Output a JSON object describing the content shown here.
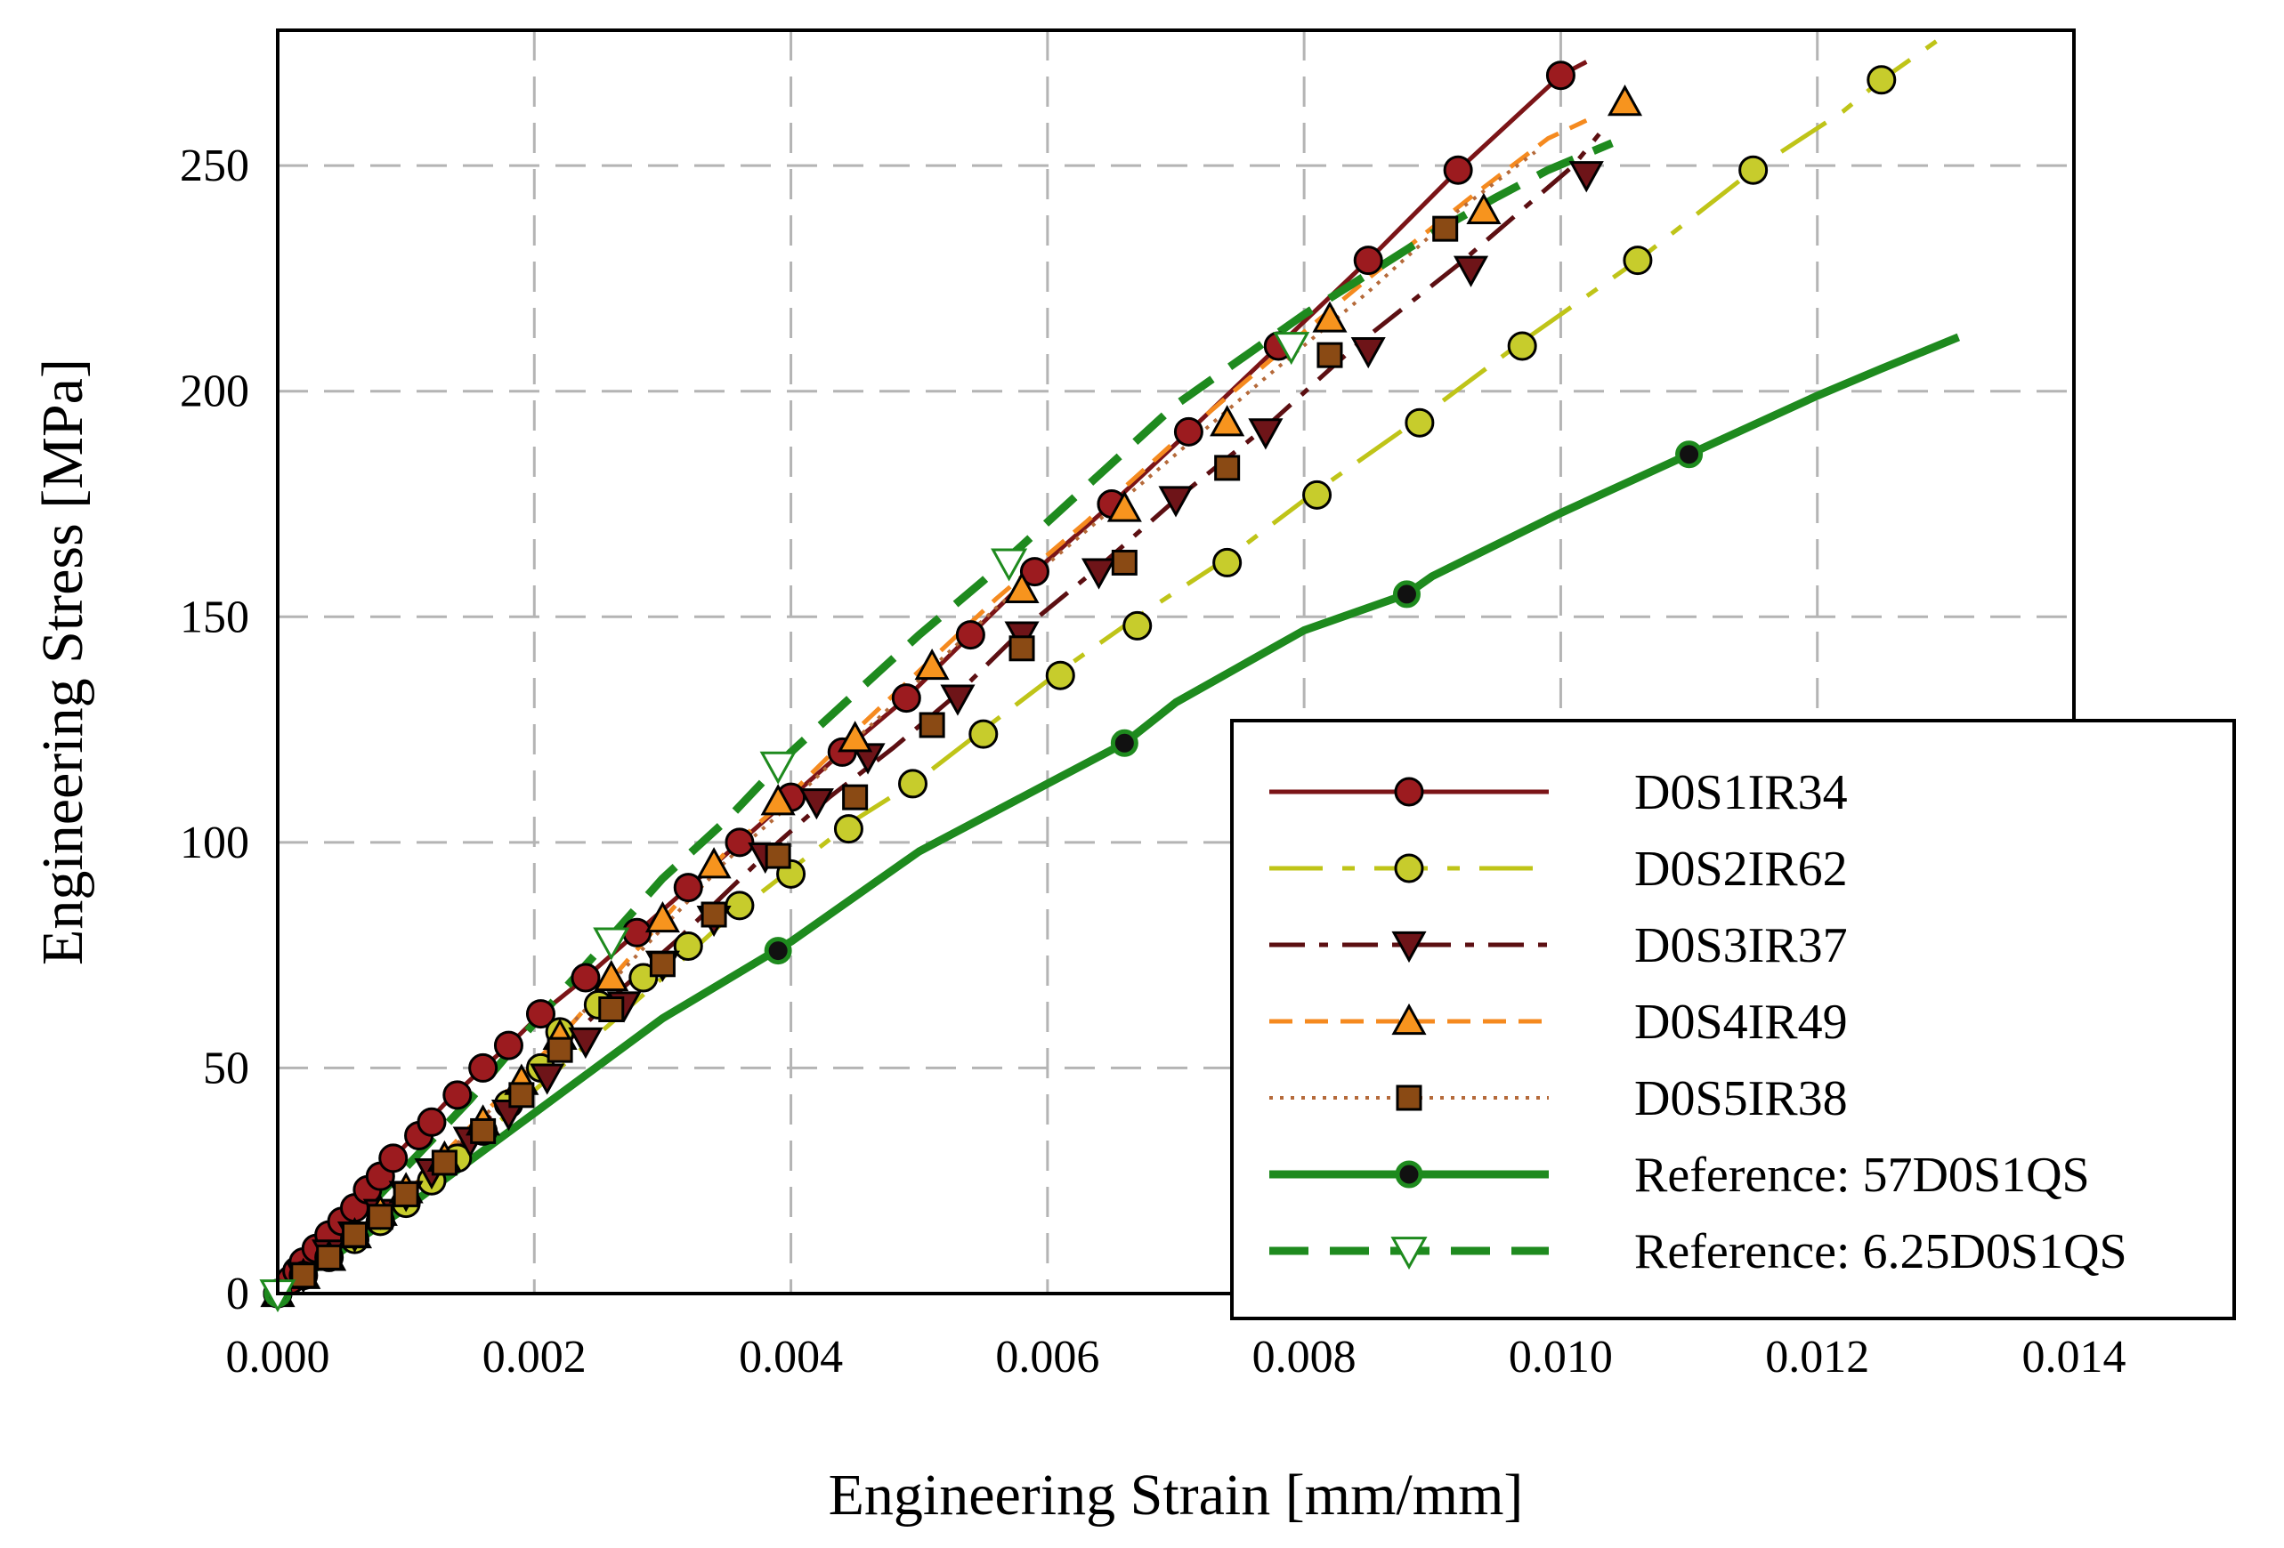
{
  "chart_data": {
    "type": "line",
    "title": "",
    "xlabel": "Engineering Strain [mm/mm]",
    "ylabel": "Engineering Stress [MPa]",
    "xlim": [
      0,
      0.014
    ],
    "ylim": [
      0,
      280
    ],
    "grid": true,
    "legend_position": "bottom-right",
    "xticks": [
      0,
      0.002,
      0.004,
      0.006,
      0.008,
      0.01,
      0.012,
      0.014
    ],
    "xtick_labels": [
      "0.000",
      "0.002",
      "0.004",
      "0.006",
      "0.008",
      "0.010",
      "0.012",
      "0.014"
    ],
    "yticks": [
      0,
      50,
      100,
      150,
      200,
      250
    ],
    "ytick_labels": [
      "0",
      "50",
      "100",
      "150",
      "200",
      "250"
    ],
    "series": [
      {
        "name": "D0S1IR34",
        "color": "#7B1417",
        "marker": "circle",
        "marker_fill": "#9C1B1F",
        "dash": "",
        "line_width": 5,
        "x": [
          0,
          0.00015,
          0.0003,
          0.0005,
          0.0007,
          0.0009,
          0.0011,
          0.0013,
          0.0016,
          0.0018,
          0.00205,
          0.0024,
          0.0028,
          0.0032,
          0.0036,
          0.004,
          0.0044,
          0.0049,
          0.0054,
          0.0059,
          0.0065,
          0.0071,
          0.0078,
          0.0085,
          0.0092,
          0.01,
          0.0102
        ],
        "y": [
          0,
          5,
          10,
          16,
          23,
          30,
          36,
          42,
          50,
          55,
          62,
          70,
          80,
          90,
          100,
          110,
          120,
          132,
          146,
          160,
          175,
          191,
          210,
          229,
          249,
          270,
          273
        ],
        "marker_x": [
          0,
          0.0001,
          0.00015,
          0.0002,
          0.0003,
          0.0004,
          0.0005,
          0.0006,
          0.0007,
          0.0008,
          0.0009,
          0.0011,
          0.0012,
          0.0014,
          0.0016,
          0.0018,
          0.00205,
          0.0024,
          0.0028,
          0.0032,
          0.0036,
          0.004,
          0.0044,
          0.0049,
          0.0054,
          0.0059,
          0.0065,
          0.0071,
          0.0078,
          0.0085,
          0.0092,
          0.01
        ],
        "marker_y": [
          0,
          3,
          5,
          7,
          10,
          13,
          16,
          19,
          23,
          26,
          30,
          35,
          38,
          44,
          50,
          55,
          62,
          70,
          80,
          90,
          100,
          110,
          120,
          132,
          146,
          160,
          175,
          191,
          210,
          229,
          249,
          270
        ]
      },
      {
        "name": "D0S2IR62",
        "color": "#BFC418",
        "marker": "circle",
        "marker_fill": "#C7CC2C",
        "dash": "60 22 14 22",
        "line_width": 5,
        "x": [
          0,
          0.0003,
          0.0006,
          0.001,
          0.0014,
          0.0018,
          0.0022,
          0.0026,
          0.003,
          0.0035,
          0.004,
          0.0045,
          0.005,
          0.0055,
          0.0061,
          0.0067,
          0.0074,
          0.0081,
          0.0089,
          0.0097,
          0.0106,
          0.0115,
          0.0122,
          0.0125,
          0.0131
        ],
        "y": [
          0,
          6,
          12,
          20,
          30,
          40,
          50,
          60,
          70,
          83,
          94,
          105,
          114,
          125,
          138,
          150,
          163,
          178,
          194,
          211,
          229,
          249,
          262,
          269,
          281
        ],
        "marker_x": [
          0,
          0.0002,
          0.0004,
          0.0006,
          0.0008,
          0.001,
          0.0012,
          0.0014,
          0.0016,
          0.0018,
          0.00205,
          0.0022,
          0.0025,
          0.00285,
          0.0032,
          0.0036,
          0.004,
          0.00445,
          0.00495,
          0.0055,
          0.0061,
          0.0067,
          0.0074,
          0.0081,
          0.0089,
          0.0097,
          0.0106,
          0.0115,
          0.0125
        ],
        "marker_y": [
          0,
          4,
          8,
          12,
          16,
          20,
          25,
          30,
          36,
          42,
          50,
          58,
          64,
          70,
          77,
          86,
          93,
          103,
          113,
          124,
          137,
          148,
          162,
          177,
          193,
          210,
          229,
          249,
          269
        ]
      },
      {
        "name": "D0S3IR37",
        "color": "#5C0F12",
        "marker": "triangle-down",
        "marker_fill": "#6E1418",
        "dash": "40 16 10 16",
        "line_width": 5,
        "x": [
          0,
          0.0003,
          0.0007,
          0.0011,
          0.0015,
          0.0019,
          0.0023,
          0.0027,
          0.0031,
          0.0035,
          0.0039,
          0.0043,
          0.0048,
          0.0053,
          0.0058,
          0.0064,
          0.007,
          0.0077,
          0.0084,
          0.0092,
          0.0101,
          0.0103
        ],
        "y": [
          0,
          6,
          15,
          25,
          35,
          46,
          57,
          68,
          78,
          89,
          100,
          110,
          121,
          133,
          147,
          161,
          176,
          192,
          210,
          228,
          250,
          257
        ],
        "marker_x": [
          0,
          0.0002,
          0.0004,
          0.0006,
          0.0008,
          0.001,
          0.0012,
          0.0015,
          0.0018,
          0.0021,
          0.0024,
          0.0027,
          0.003,
          0.0034,
          0.0038,
          0.0042,
          0.0046,
          0.0053,
          0.0058,
          0.0064,
          0.007,
          0.0077,
          0.0085,
          0.0093,
          0.0102
        ],
        "marker_y": [
          0,
          4,
          9,
          13,
          18,
          22,
          27,
          34,
          40,
          48,
          56,
          64,
          73,
          83,
          97,
          109,
          119,
          132,
          146,
          160,
          176,
          191,
          209,
          227,
          248
        ]
      },
      {
        "name": "D0S4IR49",
        "color": "#F58A1F",
        "marker": "triangle-up",
        "marker_fill": "#F7941E",
        "dash": "26 14",
        "line_width": 5,
        "x": [
          0,
          0.0003,
          0.0007,
          0.0011,
          0.0015,
          0.0019,
          0.0023,
          0.0027,
          0.0031,
          0.0035,
          0.0039,
          0.0044,
          0.005,
          0.0056,
          0.0063,
          0.007,
          0.0077,
          0.0085,
          0.0093,
          0.0099,
          0.0102
        ],
        "y": [
          0,
          6,
          15,
          25,
          37,
          48,
          60,
          73,
          86,
          98,
          108,
          122,
          138,
          154,
          171,
          189,
          206,
          225,
          243,
          256,
          260
        ],
        "marker_x": [
          0,
          0.0002,
          0.0004,
          0.0006,
          0.0008,
          0.001,
          0.0013,
          0.0016,
          0.0019,
          0.0022,
          0.0026,
          0.003,
          0.0034,
          0.0039,
          0.0045,
          0.0051,
          0.0058,
          0.0066,
          0.0074,
          0.0082,
          0.0094,
          0.0105
        ],
        "marker_y": [
          0,
          4,
          8,
          13,
          18,
          23,
          30,
          38,
          47,
          57,
          70,
          83,
          95,
          109,
          123,
          139,
          156,
          174,
          193,
          216,
          240,
          264
        ]
      },
      {
        "name": "D0S5IR38",
        "color": "#B56A3A",
        "marker": "square",
        "marker_fill": "#8A4A14",
        "dash": "4 8",
        "line_width": 4,
        "x": [
          0,
          0.0003,
          0.0007,
          0.0011,
          0.0015,
          0.0019,
          0.0023,
          0.0027,
          0.0031,
          0.0035,
          0.0039,
          0.0044,
          0.005,
          0.0056,
          0.0063,
          0.007,
          0.0077,
          0.0085,
          0.0092,
          0.0098
        ],
        "y": [
          0,
          6,
          14,
          25,
          36,
          48,
          60,
          72,
          84,
          96,
          106,
          120,
          136,
          152,
          169,
          186,
          203,
          222,
          240,
          253
        ],
        "marker_x": [
          0,
          0.0002,
          0.0004,
          0.0006,
          0.0008,
          0.001,
          0.0013,
          0.0016,
          0.0019,
          0.0022,
          0.0026,
          0.003,
          0.0034,
          0.0039,
          0.0045,
          0.0051,
          0.0058,
          0.0066,
          0.0074,
          0.0082,
          0.0091
        ],
        "marker_y": [
          0,
          4,
          8,
          13,
          17,
          22,
          29,
          36,
          44,
          54,
          63,
          73,
          84,
          97,
          110,
          126,
          143,
          162,
          183,
          208,
          236
        ]
      },
      {
        "name": "Reference: 57D0S1QS",
        "color": "#1E8A1E",
        "marker": "circle-small",
        "marker_fill": "#1E8A1E",
        "dash": "",
        "line_width": 9,
        "x": [
          0,
          0.001,
          0.002,
          0.003,
          0.004,
          0.005,
          0.006,
          0.0066,
          0.007,
          0.008,
          0.0088,
          0.009,
          0.01,
          0.011,
          0.012,
          0.0125,
          0.0131
        ],
        "y": [
          0,
          19,
          40,
          61,
          78,
          98,
          113,
          122,
          131,
          147,
          155,
          159,
          173,
          186,
          199,
          205,
          212
        ],
        "marker_x": [
          0,
          0.0039,
          0.0066,
          0.0088,
          0.011
        ],
        "marker_y": [
          0,
          76,
          122,
          155,
          186
        ]
      },
      {
        "name": "Reference: 6.25D0S1QS",
        "color": "#1E8A1E",
        "marker": "triangle-down-open",
        "marker_fill": "#ffffff",
        "dash": "44 24",
        "line_width": 9,
        "x": [
          0,
          0.0005,
          0.001,
          0.0015,
          0.002,
          0.0025,
          0.003,
          0.0035,
          0.004,
          0.0045,
          0.005,
          0.0055,
          0.006,
          0.0065,
          0.007,
          0.0075,
          0.008,
          0.0085,
          0.009,
          0.0095,
          0.0099,
          0.0104
        ],
        "y": [
          0,
          13,
          28,
          43,
          60,
          76,
          92,
          105,
          120,
          133,
          146,
          158,
          171,
          184,
          197,
          207,
          217,
          226,
          235,
          243,
          249,
          255
        ],
        "marker_x": [
          0,
          0.0026,
          0.0039,
          0.0057,
          0.0079
        ],
        "marker_y": [
          0,
          78,
          117,
          162,
          210
        ]
      }
    ]
  }
}
